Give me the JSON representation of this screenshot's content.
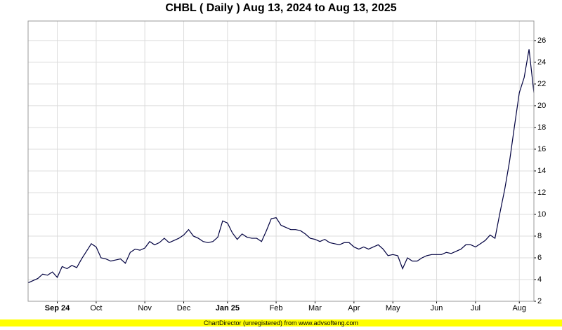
{
  "chart_data": {
    "type": "line",
    "title": "CHBL ( Daily ) Aug 13, 2024 to Aug 13, 2025",
    "footer": "ChartDirector (unregistered) from www.advsofteng.com",
    "categories": [
      null,
      null,
      null,
      null,
      null,
      null,
      "Sep 24",
      null,
      null,
      null,
      null,
      null,
      null,
      null,
      "Oct",
      null,
      null,
      null,
      null,
      null,
      null,
      null,
      null,
      null,
      "Nov",
      null,
      null,
      null,
      null,
      null,
      null,
      null,
      "Dec",
      null,
      null,
      null,
      null,
      null,
      null,
      null,
      null,
      "Jan 25",
      null,
      null,
      null,
      null,
      null,
      null,
      null,
      null,
      null,
      "Feb",
      null,
      null,
      null,
      null,
      null,
      null,
      null,
      "Mar",
      null,
      null,
      null,
      null,
      null,
      null,
      null,
      "Apr",
      null,
      null,
      null,
      null,
      null,
      null,
      null,
      "May",
      null,
      null,
      null,
      null,
      null,
      null,
      null,
      null,
      "Jun",
      null,
      null,
      null,
      null,
      null,
      null,
      null,
      "Jul",
      null,
      null,
      null,
      null,
      null,
      null,
      null,
      null,
      "Aug",
      null,
      null,
      null
    ],
    "series": [
      {
        "name": "CHBL",
        "color": "#000040",
        "values": [
          3.7,
          3.9,
          4.1,
          4.5,
          4.4,
          4.7,
          4.2,
          5.2,
          5.0,
          5.3,
          5.1,
          5.9,
          6.6,
          7.3,
          7.0,
          6.0,
          5.9,
          5.7,
          5.8,
          5.9,
          5.5,
          6.5,
          6.8,
          6.7,
          6.9,
          7.5,
          7.2,
          7.4,
          7.8,
          7.4,
          7.6,
          7.8,
          8.1,
          8.6,
          8.0,
          7.8,
          7.5,
          7.4,
          7.5,
          7.9,
          9.4,
          9.2,
          8.3,
          7.7,
          8.2,
          7.9,
          7.8,
          7.8,
          7.5,
          8.5,
          9.6,
          9.7,
          9.0,
          8.8,
          8.6,
          8.6,
          8.5,
          8.2,
          7.8,
          7.7,
          7.5,
          7.7,
          7.4,
          7.3,
          7.2,
          7.4,
          7.4,
          7.0,
          6.8,
          7.0,
          6.8,
          7.0,
          7.2,
          6.8,
          6.2,
          6.3,
          6.2,
          5.0,
          6.0,
          5.7,
          5.7,
          6.0,
          6.2,
          6.3,
          6.3,
          6.3,
          6.5,
          6.4,
          6.6,
          6.8,
          7.2,
          7.2,
          7.0,
          7.3,
          7.6,
          8.1,
          7.8,
          10.1,
          12.3,
          14.9,
          18.1,
          21.2,
          22.6,
          25.2,
          21.2
        ]
      }
    ],
    "ylim": [
      2,
      27.8
    ],
    "yticks": [
      2,
      4,
      6,
      8,
      10,
      12,
      14,
      16,
      18,
      20,
      22,
      24,
      26
    ],
    "grid": true
  }
}
